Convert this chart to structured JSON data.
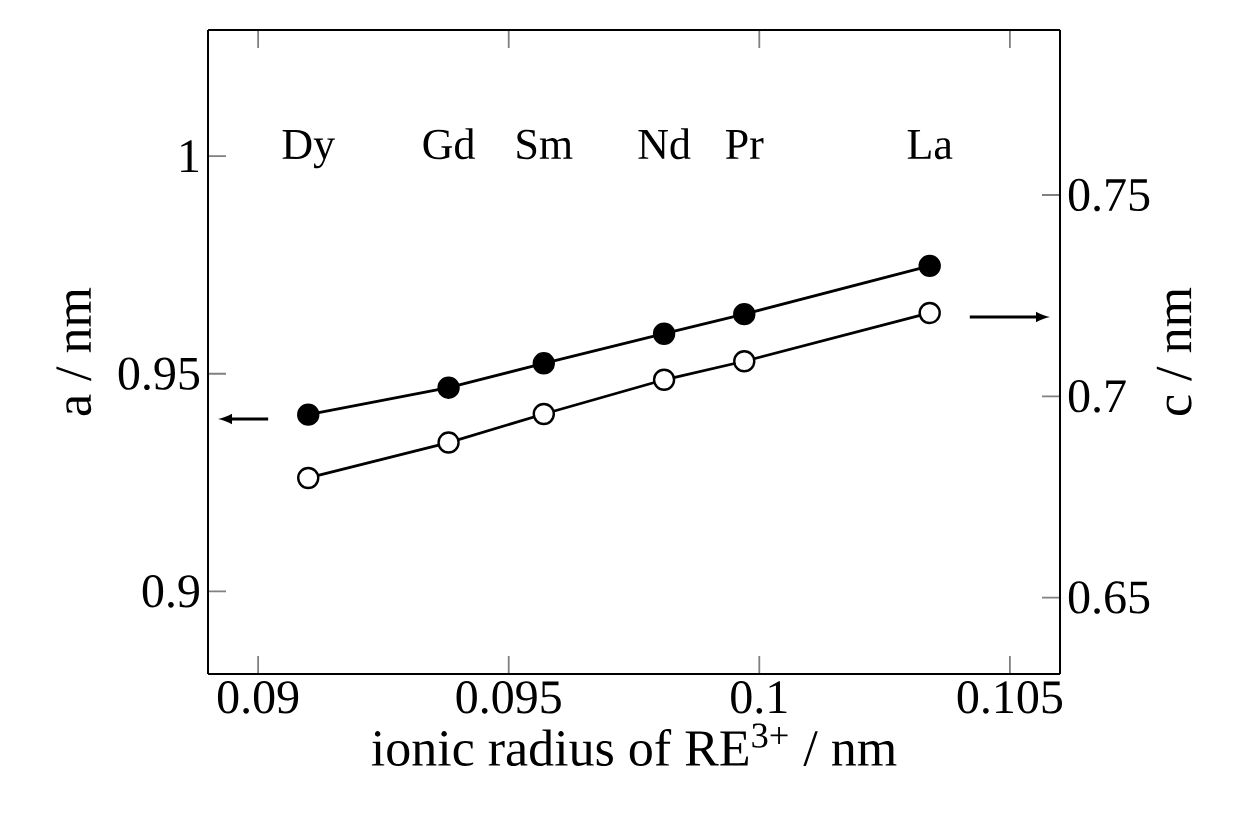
{
  "chart_data": {
    "type": "line",
    "xlabel": "ionic radius of RE$^{3+}$ / nm",
    "ylabel": "a / nm",
    "y2label": "c / nm",
    "x": [
      0.091,
      0.0938,
      0.0957,
      0.0981,
      0.0997,
      0.1034
    ],
    "series": [
      {
        "color": "#000000",
        "values": [
          0.9406,
          0.9468,
          0.9524,
          0.9592,
          0.9637,
          0.9748
        ]
      },
      {
        "color": "#000000",
        "axis": "y2",
        "values": [
          0.6797,
          0.6885,
          0.6956,
          0.7041,
          0.7087,
          0.7207
        ]
      }
    ],
    "xlim": [
      0.089,
      0.106
    ],
    "xticks": [
      0.09,
      0.095,
      0.1,
      0.105
    ],
    "ylim": [
      0.881,
      1.029
    ],
    "yticks": [
      0.9,
      0.95,
      1
    ],
    "y2lim": [
      0.631,
      0.791
    ],
    "y2ticks": [
      0.65,
      0.7,
      0.75
    ],
    "marker": "circle",
    "line_style": "solid",
    "annotations": [
      "Dy",
      "Gd",
      "Sm",
      "Nd",
      "Pr",
      "La"
    ]
  }
}
